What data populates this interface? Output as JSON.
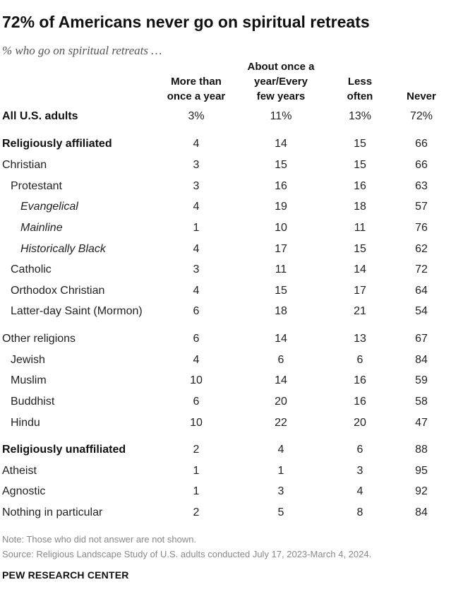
{
  "title": "72% of Americans never go on spiritual retreats",
  "subtitle": "% who go on spiritual retreats …",
  "chart_data": {
    "type": "table",
    "columns": [
      "More than\nonce a year",
      "About once a\nyear/Every\nfew years",
      "Less\noften",
      "Never"
    ],
    "rows": [
      {
        "label": "All U.S. adults",
        "values": [
          "3%",
          "11%",
          "13%",
          "72%"
        ],
        "style": "bold",
        "indent": 0
      },
      {
        "label": "Religiously affiliated",
        "values": [
          "4",
          "14",
          "15",
          "66"
        ],
        "style": "bold",
        "indent": 0
      },
      {
        "label": "Christian",
        "values": [
          "3",
          "15",
          "15",
          "66"
        ],
        "style": "normal",
        "indent": 0
      },
      {
        "label": "Protestant",
        "values": [
          "3",
          "16",
          "16",
          "63"
        ],
        "style": "normal",
        "indent": 1
      },
      {
        "label": "Evangelical",
        "values": [
          "4",
          "19",
          "18",
          "57"
        ],
        "style": "italic",
        "indent": 2
      },
      {
        "label": "Mainline",
        "values": [
          "1",
          "10",
          "11",
          "76"
        ],
        "style": "italic",
        "indent": 2
      },
      {
        "label": "Historically Black",
        "values": [
          "4",
          "17",
          "15",
          "62"
        ],
        "style": "italic",
        "indent": 2
      },
      {
        "label": "Catholic",
        "values": [
          "3",
          "11",
          "14",
          "72"
        ],
        "style": "normal",
        "indent": 1
      },
      {
        "label": "Orthodox Christian",
        "values": [
          "4",
          "15",
          "17",
          "64"
        ],
        "style": "normal",
        "indent": 1
      },
      {
        "label": "Latter-day Saint (Mormon)",
        "values": [
          "6",
          "18",
          "21",
          "54"
        ],
        "style": "normal",
        "indent": 1
      },
      {
        "label": "Other religions",
        "values": [
          "6",
          "14",
          "13",
          "67"
        ],
        "style": "normal",
        "indent": 0
      },
      {
        "label": "Jewish",
        "values": [
          "4",
          "6",
          "6",
          "84"
        ],
        "style": "normal",
        "indent": 1
      },
      {
        "label": "Muslim",
        "values": [
          "10",
          "14",
          "16",
          "59"
        ],
        "style": "normal",
        "indent": 1
      },
      {
        "label": "Buddhist",
        "values": [
          "6",
          "20",
          "16",
          "58"
        ],
        "style": "normal",
        "indent": 1
      },
      {
        "label": "Hindu",
        "values": [
          "10",
          "22",
          "20",
          "47"
        ],
        "style": "normal",
        "indent": 1
      },
      {
        "label": "Religiously unaffiliated",
        "values": [
          "2",
          "4",
          "6",
          "88"
        ],
        "style": "bold",
        "indent": 0
      },
      {
        "label": "Atheist",
        "values": [
          "1",
          "1",
          "3",
          "95"
        ],
        "style": "normal",
        "indent": 0
      },
      {
        "label": "Agnostic",
        "values": [
          "1",
          "3",
          "4",
          "92"
        ],
        "style": "normal",
        "indent": 0
      },
      {
        "label": "Nothing in particular",
        "values": [
          "2",
          "5",
          "8",
          "84"
        ],
        "style": "normal",
        "indent": 0
      }
    ]
  },
  "note": "Note: Those who did not answer are not shown.",
  "source": "Source: Religious Landscape Study of U.S. adults conducted July 17, 2023-March 4, 2024.",
  "brand": "PEW RESEARCH CENTER",
  "colors": {
    "text": "#222222",
    "muted": "#888888",
    "subtitle": "#555555"
  }
}
